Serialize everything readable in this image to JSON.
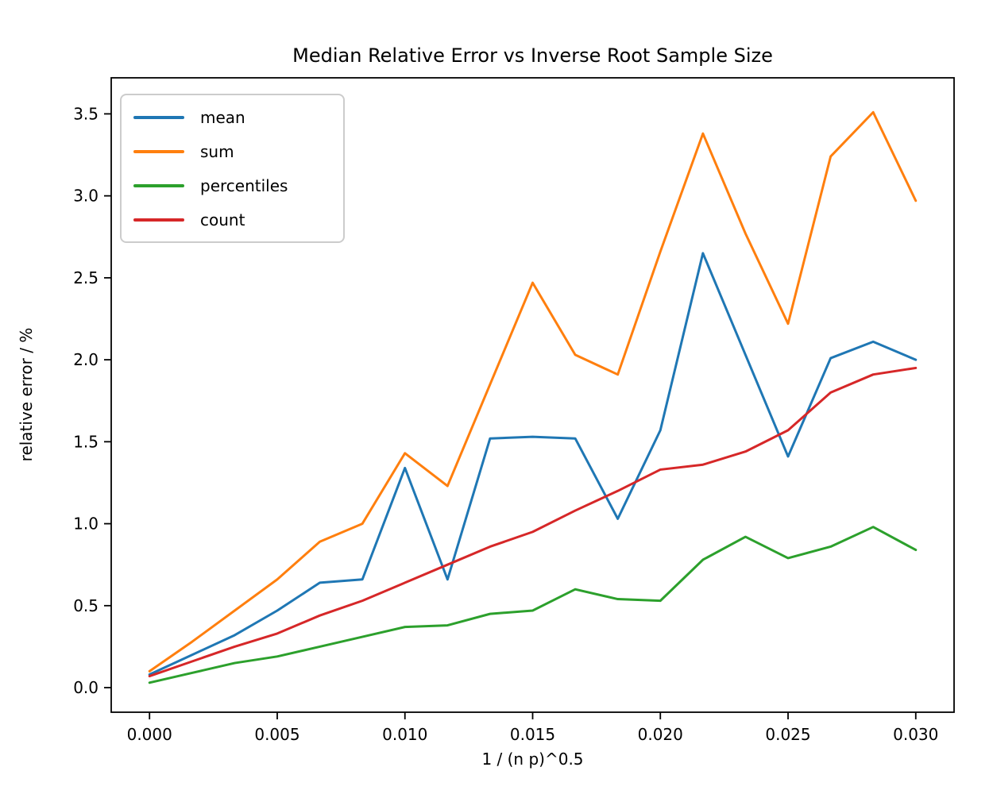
{
  "chart_data": {
    "type": "line",
    "title": "Median Relative Error vs Inverse Root Sample Size",
    "xlabel": "1 / (n p)^0.5",
    "ylabel": "relative error / %",
    "xlim": [
      -0.0015,
      0.0315
    ],
    "ylim": [
      -0.15,
      3.72
    ],
    "grid": false,
    "legend_position": "upper left",
    "x_ticks": [
      0.0,
      0.005,
      0.01,
      0.015,
      0.02,
      0.025,
      0.03
    ],
    "x_tick_labels": [
      "0.000",
      "0.005",
      "0.010",
      "0.015",
      "0.020",
      "0.025",
      "0.030"
    ],
    "y_ticks": [
      0.0,
      0.5,
      1.0,
      1.5,
      2.0,
      2.5,
      3.0,
      3.5
    ],
    "y_tick_labels": [
      "0.0",
      "0.5",
      "1.0",
      "1.5",
      "2.0",
      "2.5",
      "3.0",
      "3.5"
    ],
    "x": [
      0.0,
      0.001667,
      0.003333,
      0.005,
      0.006667,
      0.008333,
      0.01,
      0.011667,
      0.013333,
      0.015,
      0.016667,
      0.018333,
      0.02,
      0.021667,
      0.023333,
      0.025,
      0.026667,
      0.028333,
      0.03
    ],
    "series": [
      {
        "name": "mean",
        "color": "#1f77b4",
        "values": [
          0.08,
          0.2,
          0.32,
          0.47,
          0.64,
          0.66,
          1.34,
          0.66,
          1.52,
          1.53,
          1.52,
          1.03,
          1.57,
          2.65,
          2.03,
          1.41,
          2.01,
          2.11,
          2.0
        ]
      },
      {
        "name": "sum",
        "color": "#ff7f0e",
        "values": [
          0.1,
          0.28,
          0.47,
          0.66,
          0.89,
          1.0,
          1.43,
          1.23,
          1.85,
          2.47,
          2.03,
          1.91,
          2.66,
          3.38,
          2.77,
          2.22,
          3.24,
          3.51,
          2.97
        ]
      },
      {
        "name": "percentiles",
        "color": "#2ca02c",
        "values": [
          0.03,
          0.09,
          0.15,
          0.19,
          0.25,
          0.31,
          0.37,
          0.38,
          0.45,
          0.47,
          0.6,
          0.54,
          0.53,
          0.78,
          0.92,
          0.79,
          0.86,
          0.98,
          0.84
        ]
      },
      {
        "name": "count",
        "color": "#d62728",
        "values": [
          0.07,
          0.16,
          0.25,
          0.33,
          0.44,
          0.53,
          0.64,
          0.75,
          0.86,
          0.95,
          1.08,
          1.2,
          1.33,
          1.36,
          1.44,
          1.57,
          1.8,
          1.91,
          1.95
        ]
      }
    ],
    "axis_color": "#000000"
  }
}
